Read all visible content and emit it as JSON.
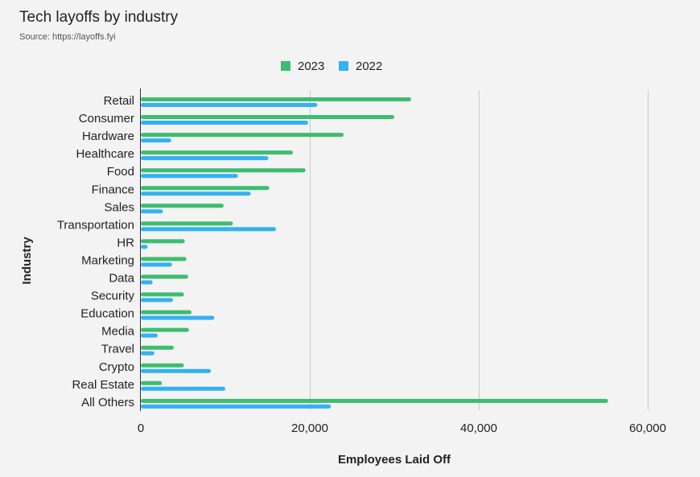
{
  "chart_data": {
    "type": "bar",
    "orientation": "horizontal",
    "title": "Tech layoffs by industry",
    "subtitle": "Source: https://layoffs.fyi",
    "xlabel": "Employees Laid Off",
    "ylabel": "Industry",
    "xlim": [
      0,
      60000
    ],
    "xticks": [
      0,
      20000,
      40000,
      60000
    ],
    "xtick_labels": [
      "0",
      "20,000",
      "40,000",
      "60,000"
    ],
    "grid": "vertical",
    "legend_position": "top",
    "categories": [
      "Retail",
      "Consumer",
      "Hardware",
      "Healthcare",
      "Food",
      "Finance",
      "Sales",
      "Transportation",
      "HR",
      "Marketing",
      "Data",
      "Security",
      "Education",
      "Media",
      "Travel",
      "Crypto",
      "Real Estate",
      "All Others"
    ],
    "series": [
      {
        "name": "2023",
        "color": "#3dbd6f",
        "values": [
          32000,
          30000,
          24000,
          18000,
          19500,
          15200,
          9800,
          10900,
          5200,
          5400,
          5600,
          5100,
          6000,
          5700,
          3900,
          5100,
          2500,
          55300
        ]
      },
      {
        "name": "2022",
        "color": "#33b1f2",
        "values": [
          20900,
          19800,
          3600,
          15100,
          11500,
          13000,
          2600,
          16000,
          800,
          3700,
          1400,
          3800,
          8700,
          2000,
          1600,
          8300,
          10000,
          22500
        ]
      }
    ]
  }
}
